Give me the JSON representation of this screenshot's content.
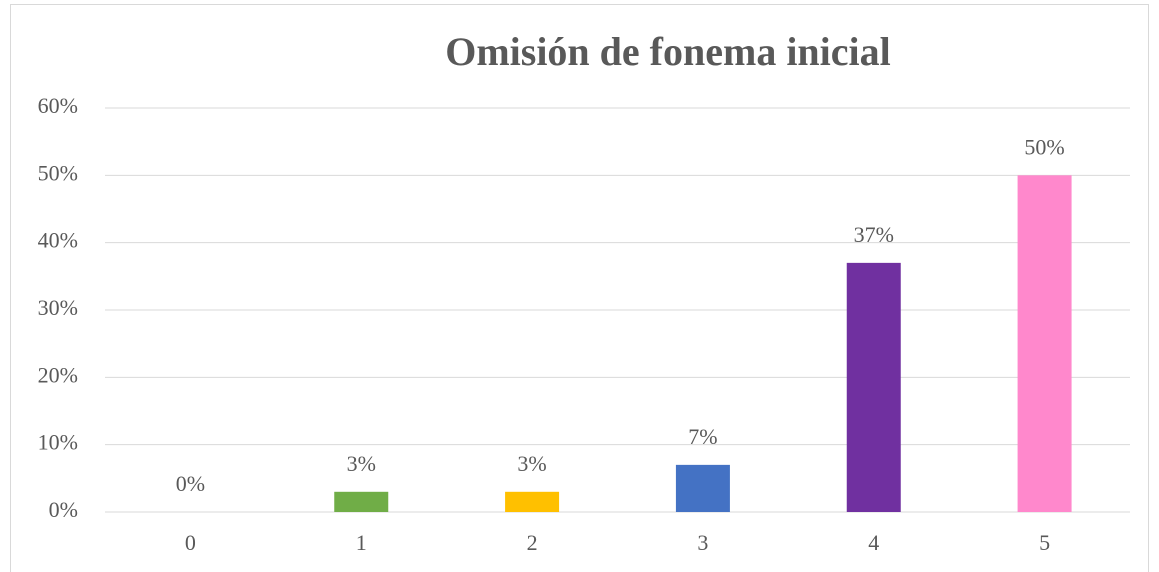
{
  "chart_data": {
    "type": "bar",
    "title": "Omisión de fonema inicial",
    "categories": [
      "0",
      "1",
      "2",
      "3",
      "4",
      "5"
    ],
    "values": [
      0,
      3,
      3,
      7,
      37,
      50
    ],
    "value_labels": [
      "0%",
      "3%",
      "3%",
      "7%",
      "37%",
      "50%"
    ],
    "colors": [
      "#4472c4",
      "#70ad47",
      "#ffc000",
      "#4472c4",
      "#7030a0",
      "#ff88cc"
    ],
    "ylim": [
      0,
      60
    ],
    "yticks": [
      {
        "value": 0,
        "label": "0%"
      },
      {
        "value": 10,
        "label": "10%"
      },
      {
        "value": 20,
        "label": "20%"
      },
      {
        "value": 30,
        "label": "30%"
      },
      {
        "value": 40,
        "label": "40%"
      },
      {
        "value": 50,
        "label": "50%"
      },
      {
        "value": 60,
        "label": "60%"
      }
    ],
    "grid": true
  }
}
